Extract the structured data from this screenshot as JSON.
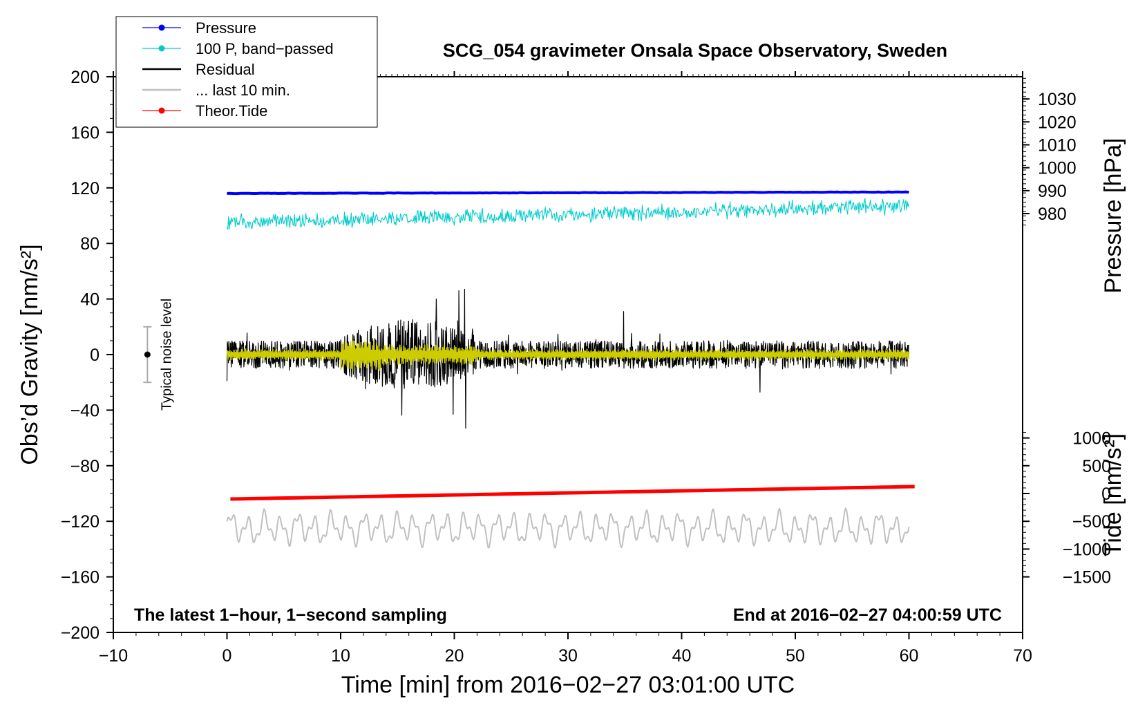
{
  "chart_data": {
    "type": "line",
    "title": "SCG_054 gravimeter Onsala Space Observatory, Sweden",
    "xlabel": "Time [min] from 2016−02−27 03:01:00 UTC",
    "ylabel_left": "Obs’d Gravity [nm/s²]",
    "ylabel_right_pressure": "Pressure [hPa]",
    "ylabel_right_tide": "Tide [nm/s²]",
    "xlim": [
      -10,
      70
    ],
    "ylim": [
      -200,
      200
    ],
    "x_ticks": [
      "−10",
      "0",
      "10",
      "20",
      "30",
      "40",
      "50",
      "60",
      "70"
    ],
    "x_tick_values": [
      -10,
      0,
      10,
      20,
      30,
      40,
      50,
      60,
      70
    ],
    "y_ticks": [
      "200",
      "160",
      "120",
      "80",
      "40",
      "0",
      "−40",
      "−80",
      "−120",
      "−160",
      "−200"
    ],
    "y_tick_values": [
      200,
      160,
      120,
      80,
      40,
      0,
      -40,
      -80,
      -120,
      -160,
      -200
    ],
    "pressure_axis": {
      "ticks": [
        "1030",
        "1020",
        "1010",
        "1000",
        "990",
        "980"
      ],
      "tick_values": [
        1030,
        1020,
        1010,
        1000,
        990,
        980
      ],
      "left_axis_equivalent_at_1030": 184,
      "left_axis_per_hPa": 1.65
    },
    "tide_axis": {
      "ticks": [
        "1000",
        "500",
        "0",
        "−500",
        "−1000",
        "−1500"
      ],
      "tick_values": [
        1000,
        500,
        0,
        -500,
        -1000,
        -1500
      ],
      "left_axis_equivalent_at_0": -100,
      "left_axis_per_unit": 0.04
    },
    "series": [
      {
        "name": "Pressure",
        "color": "#0000ff",
        "x_range": [
          0,
          60
        ],
        "start_value": 116,
        "end_value": 117,
        "style": "thick line, left-axis units"
      },
      {
        "name": "100 P, band−passed",
        "color": "#00cccc",
        "x_range": [
          0,
          60
        ],
        "start_value": 95,
        "end_value": 107,
        "noise_amplitude": 5
      },
      {
        "name": "Residual",
        "color": "#000000",
        "x_range": [
          0,
          60
        ],
        "center": 0,
        "typical_amplitude": 10,
        "burst_window": [
          10,
          22
        ],
        "peak_max": 47,
        "peak_min": -53
      },
      {
        "name": "... last 10 min.",
        "color": "#c0c0c0",
        "x_range": [
          0,
          60
        ],
        "center": -125,
        "amplitude": 12
      },
      {
        "name": "Theor.Tide",
        "color": "#ff0000",
        "x_range": [
          0.3,
          60.5
        ],
        "start_value": -104,
        "end_value": -95
      },
      {
        "name": "Band-passed residual",
        "color": "#cccc00",
        "x_range": [
          0,
          60
        ],
        "center": 0,
        "typical_amplitude": 4
      }
    ],
    "legend": {
      "position": "top-left",
      "entries": [
        {
          "label": "Pressure",
          "color": "#0000ff",
          "marker": true
        },
        {
          "label": "100 P, band−passed",
          "color": "#00cccc",
          "marker": true
        },
        {
          "label": "Residual",
          "color": "#000000",
          "marker": false
        },
        {
          "label": "... last 10 min.",
          "color": "#c0c0c0",
          "marker": false
        },
        {
          "label": "Theor.Tide",
          "color": "#ff0000",
          "marker": true
        }
      ]
    },
    "annotations": {
      "bottom_left": "The latest 1−hour, 1−second sampling",
      "bottom_right": "End at 2016−02−27 04:00:59 UTC",
      "noise_label": "Typical noise level",
      "noise_x": -7,
      "noise_center": 0,
      "noise_half_range": 20
    }
  }
}
